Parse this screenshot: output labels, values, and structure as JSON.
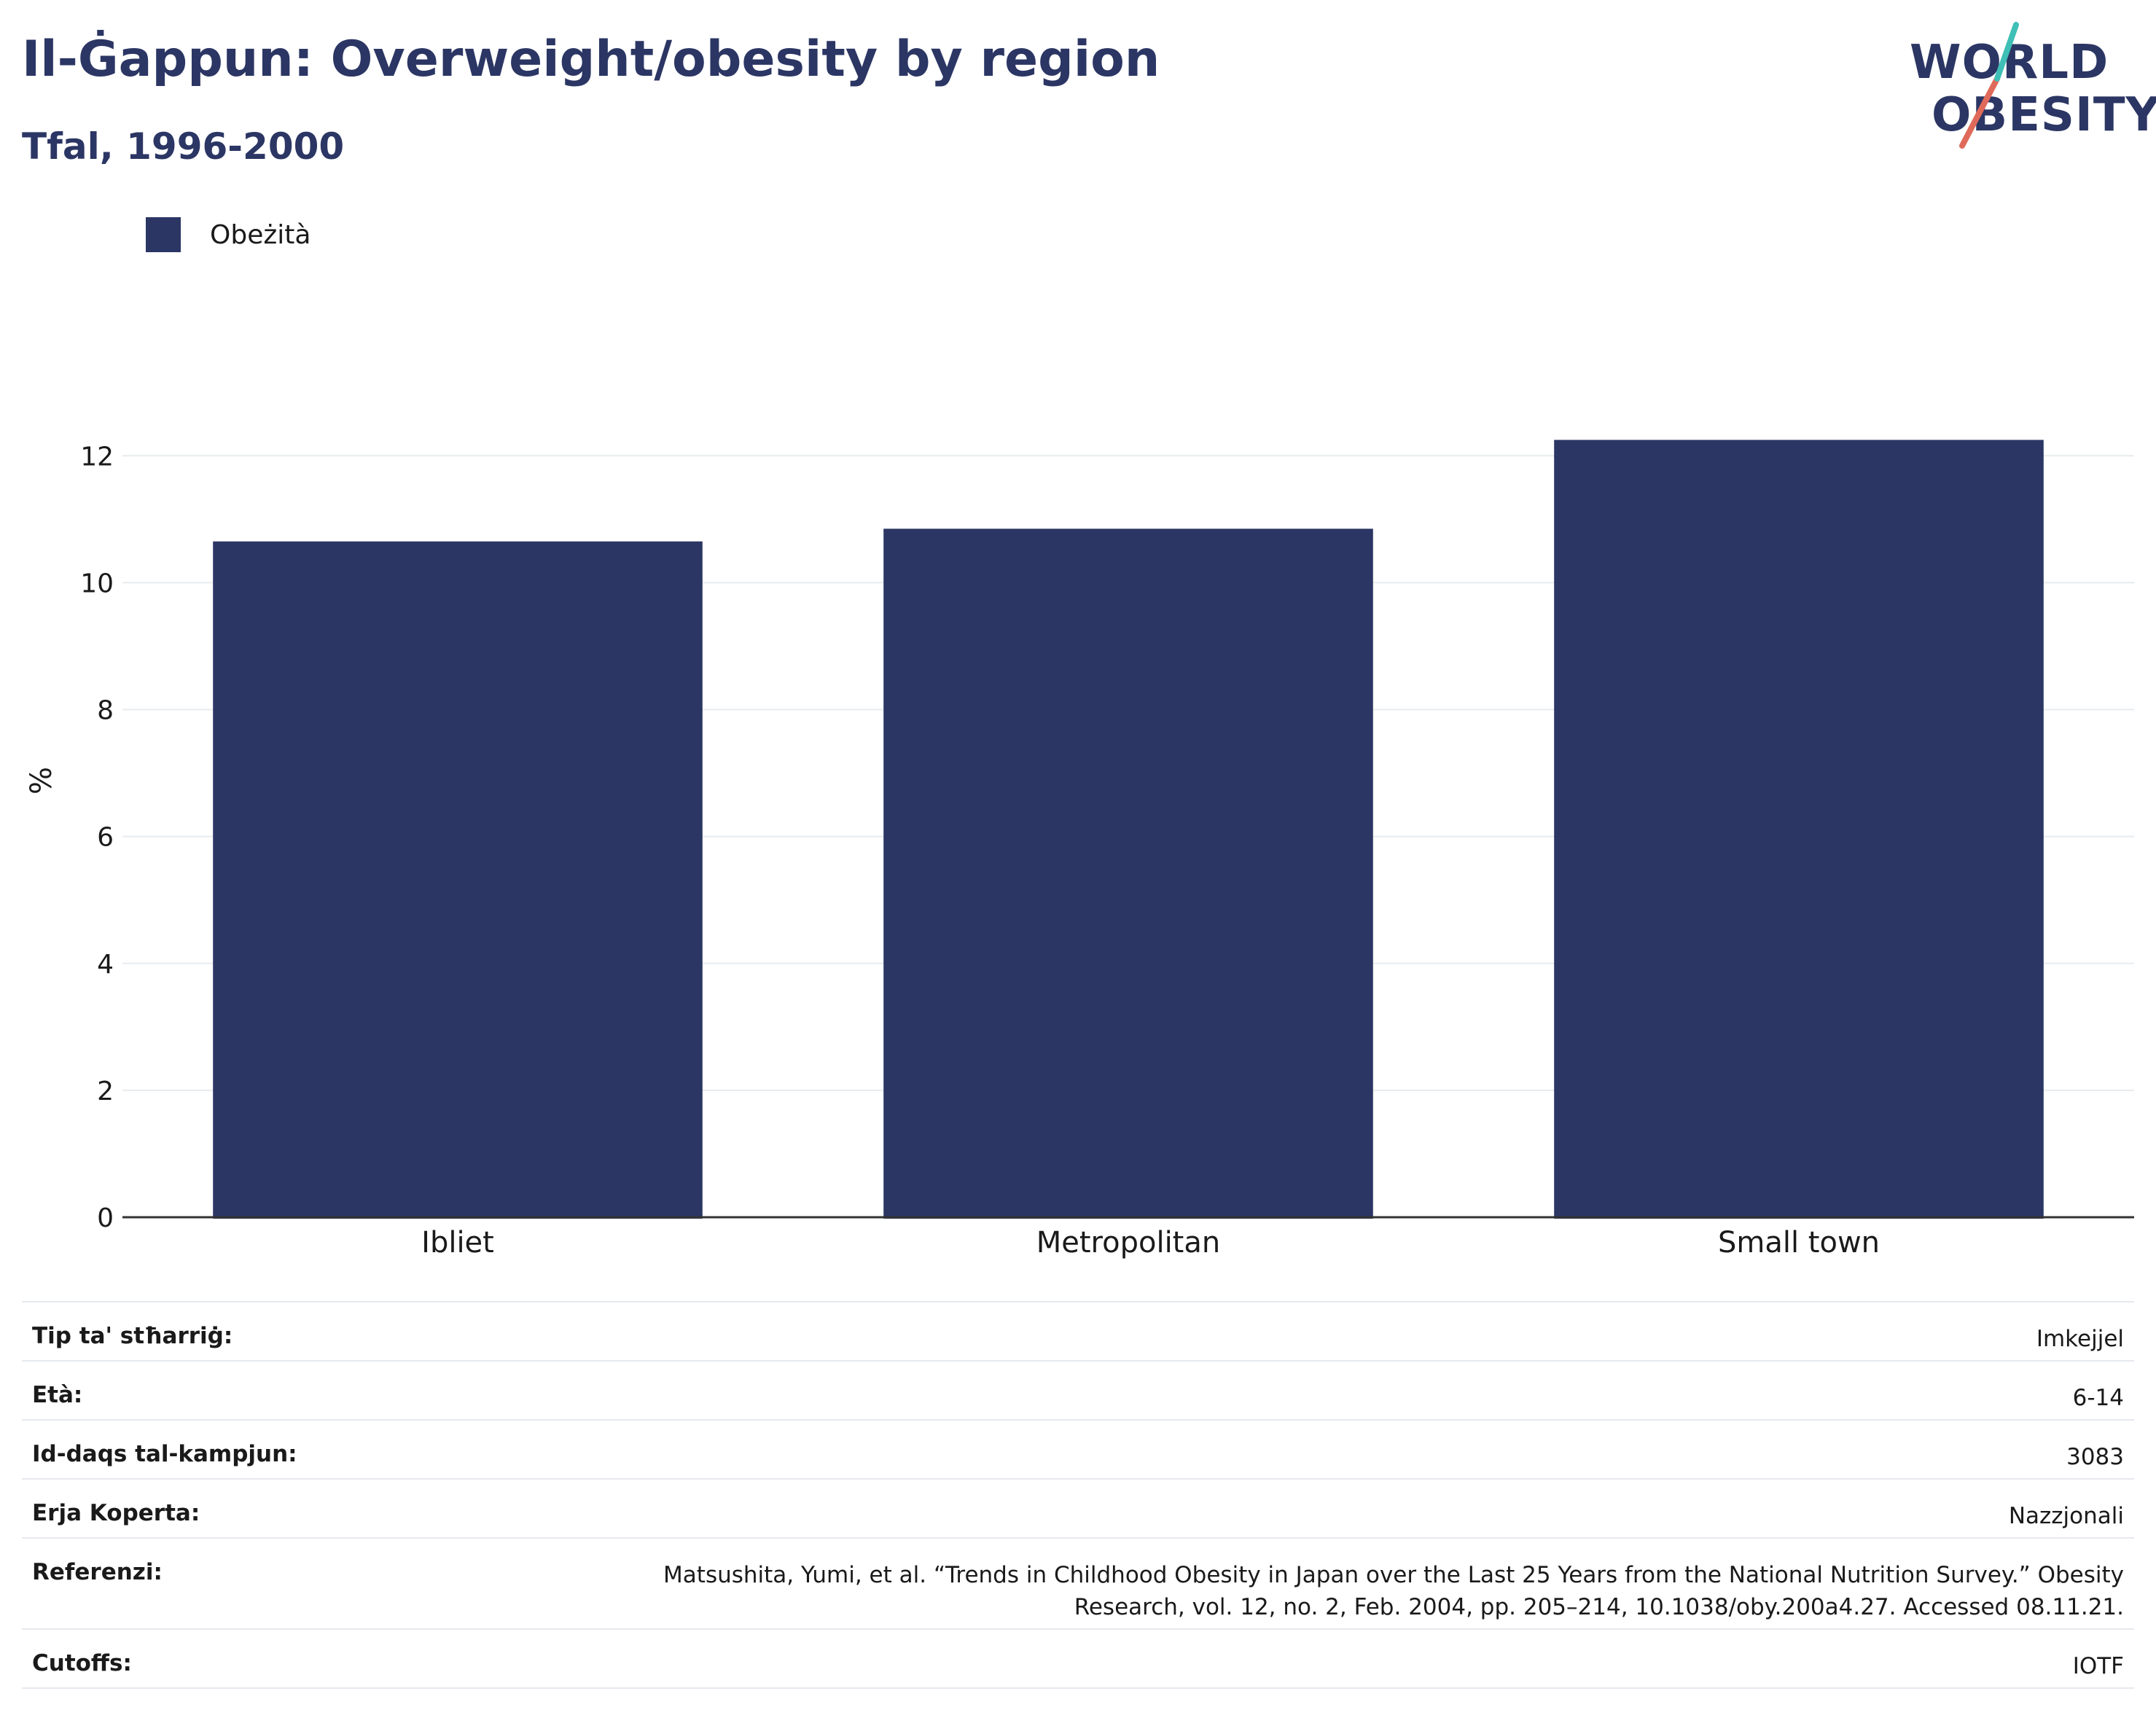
{
  "header": {
    "title": "Il-Ġappun: Overweight/obesity by region",
    "subtitle": "Tfal, 1996-2000"
  },
  "logo": {
    "line1": "WORLD",
    "line2": "OBESITY"
  },
  "legend": {
    "items": [
      {
        "label": "Obeżità",
        "color": "#2b3664"
      }
    ]
  },
  "chart_data": {
    "type": "bar",
    "title": "Il-Ġappun: Overweight/obesity by region",
    "subtitle": "Tfal, 1996-2000",
    "categories": [
      "Ibliet",
      "Metropolitan",
      "Small town"
    ],
    "series": [
      {
        "name": "Obeżità",
        "values": [
          10.65,
          10.85,
          12.25
        ],
        "color": "#2b3664"
      }
    ],
    "ylabel": "%",
    "xlabel": "",
    "ylim": [
      0,
      12.75
    ],
    "yticks": [
      0,
      2,
      4,
      6,
      8,
      10,
      12
    ],
    "grid": true,
    "legend_position": "top-left"
  },
  "info": [
    {
      "key": "Tip ta' stħarriġ:",
      "value": "Imkejjel"
    },
    {
      "key": "Età:",
      "value": "6-14"
    },
    {
      "key": "Id-daqs tal-kampjun:",
      "value": "3083"
    },
    {
      "key": "Erja Koperta:",
      "value": "Nazzjonali"
    },
    {
      "key": "Referenzi:",
      "value_line1": "Matsushita, Yumi, et al. “Trends in Childhood Obesity in Japan over the Last 25 Years from the National Nutrition Survey.” Obesity",
      "value_line2": "Research, vol. 12, no. 2, Feb. 2004, pp. 205–214, 10.1038/oby.200a4.27. Accessed 08.11.21."
    },
    {
      "key": "Cutoffs:",
      "value": "IOTF"
    }
  ]
}
